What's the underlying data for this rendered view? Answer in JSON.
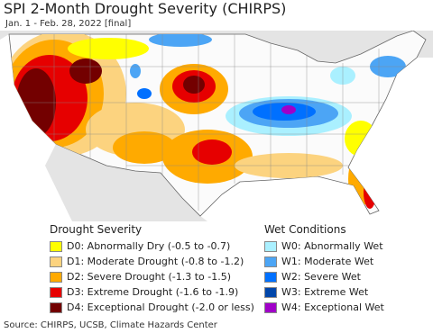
{
  "title": "SPI 2-Month Drought Severity (CHIRPS)",
  "subtitle": "Jan. 1 - Feb. 28, 2022 [final]",
  "legends": [
    {
      "title": "Drought Severity",
      "items": [
        {
          "label": "D0: Abnormally Dry (-0.5 to -0.7)",
          "color": "#ffff00"
        },
        {
          "label": "D1: Moderate Drought (-0.8 to -1.2)",
          "color": "#fcd37f"
        },
        {
          "label": "D2: Severe Drought (-1.3 to -1.5)",
          "color": "#ffaa00"
        },
        {
          "label": "D3: Extreme Drought (-1.6 to -1.9)",
          "color": "#e60000"
        },
        {
          "label": "D4: Exceptional Drought (-2.0 or less)",
          "color": "#730000"
        }
      ]
    },
    {
      "title": "Wet Conditions",
      "items": [
        {
          "label": "W0: Abnormally Wet",
          "color": "#aaf0ff"
        },
        {
          "label": "W1: Moderate Wet",
          "color": "#4ca5f5"
        },
        {
          "label": "W2: Severe Wet",
          "color": "#0070ff"
        },
        {
          "label": "W3: Extreme Wet",
          "color": "#0046aa"
        },
        {
          "label": "W4: Exceptional Wet",
          "color": "#a000c8"
        }
      ]
    }
  ],
  "source": "Source: CHIRPS, UCSB, Climate Hazards Center"
}
